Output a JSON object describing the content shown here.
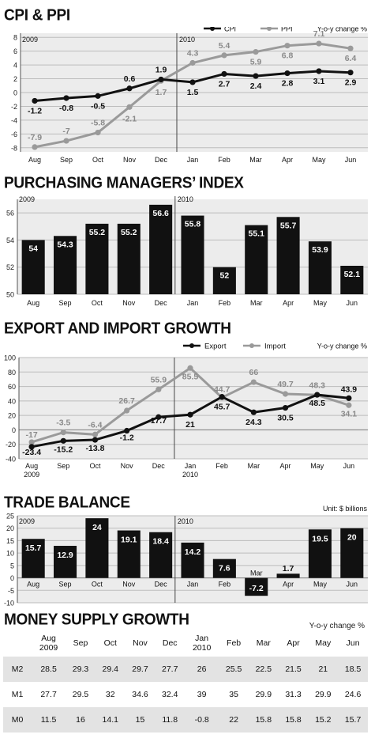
{
  "sections": {
    "cpi": {
      "title": "CPI & PPI"
    },
    "pmi": {
      "title": "PURCHASING MANAGERS’ INDEX"
    },
    "trade_growth": {
      "title": "EXPORT AND IMPORT GROWTH"
    },
    "balance": {
      "title": "TRADE BALANCE"
    },
    "money": {
      "title": "MONEY SUPPLY GROWTH"
    }
  },
  "chart_data": [
    {
      "id": "cpi_ppi",
      "type": "line",
      "title": "CPI & PPI",
      "unit_note": "Y-o-y change %",
      "year_labels": [
        "2009",
        "2010"
      ],
      "categories": [
        "Aug",
        "Sep",
        "Oct",
        "Nov",
        "Dec",
        "Jan",
        "Feb",
        "Mar",
        "Apr",
        "May",
        "Jun"
      ],
      "series": [
        {
          "name": "CPI",
          "color": "#111111",
          "values": [
            -1.2,
            -0.8,
            -0.5,
            0.6,
            1.9,
            1.5,
            2.7,
            2.4,
            2.8,
            3.1,
            2.9
          ]
        },
        {
          "name": "PPI",
          "color": "#9a9a9a",
          "values": [
            -7.9,
            -7,
            -5.8,
            -2.1,
            1.7,
            4.3,
            5.4,
            5.9,
            6.8,
            7.1,
            6.4
          ]
        }
      ],
      "yticks": [
        8,
        6,
        4,
        2,
        0,
        -2,
        -4,
        -6,
        -8
      ],
      "ylim": [
        -8.6,
        8.6
      ],
      "legend": "top-right",
      "grid": true
    },
    {
      "id": "pmi",
      "type": "bar",
      "title": "PURCHASING MANAGERS’ INDEX",
      "year_labels": [
        "2009",
        "2010"
      ],
      "categories": [
        "Aug",
        "Sep",
        "Oct",
        "Nov",
        "Dec",
        "Jan",
        "Feb",
        "Mar",
        "Apr",
        "May",
        "Jun"
      ],
      "values": [
        54,
        54.3,
        55.2,
        55.2,
        56.6,
        55.8,
        52,
        55.1,
        55.7,
        53.9,
        52.1
      ],
      "yticks": [
        56,
        54,
        52,
        50
      ],
      "ylim": [
        50,
        57
      ],
      "grid": true
    },
    {
      "id": "export_import",
      "type": "line",
      "title": "EXPORT AND IMPORT GROWTH",
      "unit_note": "Y-o-y change %",
      "categories": [
        "Aug",
        "Sep",
        "Oct",
        "Nov",
        "Dec",
        "Jan",
        "Feb",
        "Mar",
        "Apr",
        "May",
        "Jun"
      ],
      "year_labels": [
        "2009",
        "2010"
      ],
      "series": [
        {
          "name": "Export",
          "color": "#111111",
          "values": [
            -23.4,
            -15.2,
            -13.8,
            -1.2,
            17.7,
            21,
            45.7,
            24.3,
            30.5,
            48.5,
            43.9
          ]
        },
        {
          "name": "Import",
          "color": "#9a9a9a",
          "values": [
            -17,
            -3.5,
            -6.4,
            26.7,
            55.9,
            85.5,
            44.7,
            66,
            49.7,
            48.3,
            34.1
          ]
        }
      ],
      "yticks": [
        100,
        80,
        60,
        40,
        20,
        0,
        -20,
        -40
      ],
      "ylim": [
        -40,
        100
      ],
      "legend": "top-right",
      "grid": true
    },
    {
      "id": "trade_balance",
      "type": "bar",
      "title": "TRADE BALANCE",
      "unit_note": "Unit: $ billions",
      "year_labels": [
        "2009",
        "2010"
      ],
      "categories": [
        "Aug",
        "Sep",
        "Oct",
        "Nov",
        "Dec",
        "Jan",
        "Feb",
        "Mar",
        "Apr",
        "May",
        "Jun"
      ],
      "values": [
        15.7,
        12.9,
        24,
        19.1,
        18.4,
        14.2,
        7.6,
        -7.2,
        1.7,
        19.5,
        20
      ],
      "yticks": [
        25,
        20,
        15,
        10,
        5,
        0,
        -5,
        -10
      ],
      "ylim": [
        -10,
        25
      ],
      "grid": true
    },
    {
      "id": "money_supply",
      "type": "table",
      "title": "MONEY SUPPLY GROWTH",
      "unit_note": "Y-o-y change %",
      "columns": [
        "Aug\n2009",
        "Sep",
        "Oct",
        "Nov",
        "Dec",
        "Jan\n2010",
        "Feb",
        "Mar",
        "Apr",
        "May",
        "Jun"
      ],
      "rows": [
        {
          "label": "M2",
          "values": [
            "28.5",
            "29.3",
            "29.4",
            "29.7",
            "27.7",
            "26",
            "25.5",
            "22.5",
            "21.5",
            "21",
            "18.5"
          ]
        },
        {
          "label": "M1",
          "values": [
            "27.7",
            "29.5",
            "32",
            "34.6",
            "32.4",
            "39",
            "35",
            "29.9",
            "31.3",
            "29.9",
            "24.6"
          ]
        },
        {
          "label": "M0",
          "values": [
            "11.5",
            "16",
            "14.1",
            "15",
            "11.8",
            "-0.8",
            "22",
            "15.8",
            "15.8",
            "15.2",
            "15.7"
          ]
        }
      ]
    }
  ]
}
